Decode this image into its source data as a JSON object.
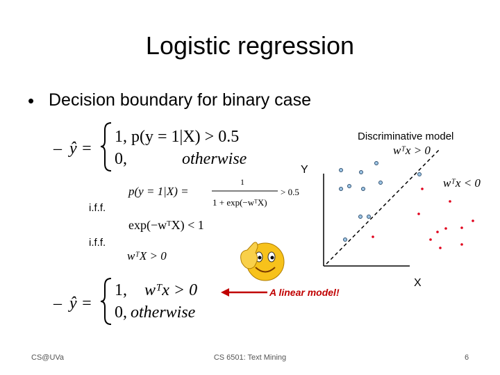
{
  "header": {
    "title": "Logistic regression"
  },
  "bullet": "Decision boundary for binary case",
  "equation1": {
    "dash": "–",
    "lhs": "ŷ =",
    "case1": "1, p(y = 1|X) > 0.5",
    "case2_num": "0,",
    "case2_text": "otherwise"
  },
  "derivation": {
    "fraction_lhs": "p(y = 1|X) =",
    "numerator": "1",
    "denominator": "1 + exp(−wᵀX)",
    "fraction_rhs": "> 0.5",
    "iff1": "i.f.f.",
    "step2": "exp(−wᵀX) < 1",
    "iff2": "i.f.f.",
    "step3": "wᵀX > 0"
  },
  "equation2": {
    "dash": "–",
    "lhs": "ŷ =",
    "case1_num": "1,",
    "case1_text": "wᵀx > 0",
    "case2_num": "0,",
    "case2_text": "otherwise"
  },
  "annotation": "A linear model!",
  "figure": {
    "title": "Discriminative model",
    "upper_region": "wᵀx > 0",
    "lower_region": "wᵀx < 0",
    "y_axis": "Y",
    "x_axis": "X"
  },
  "footer": {
    "left": "CS@UVa",
    "center": "CS 6501: Text Mining",
    "page": "6"
  }
}
